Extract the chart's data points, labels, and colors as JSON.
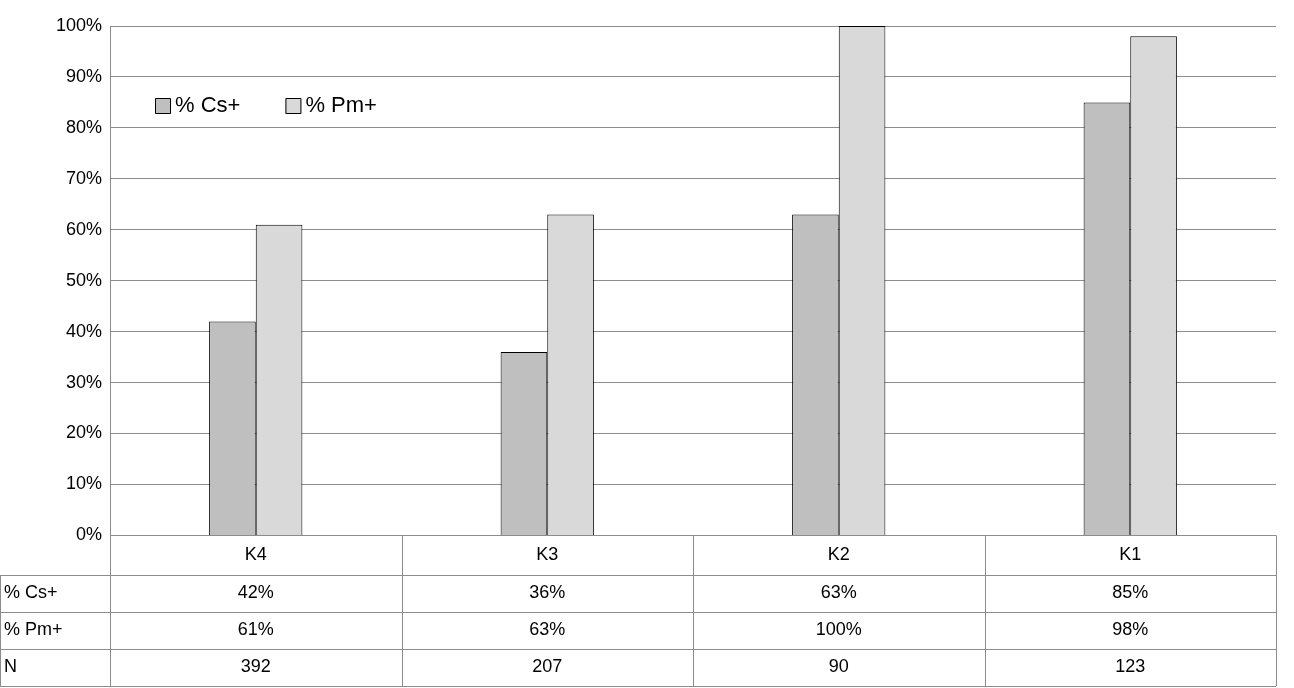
{
  "chart_data": {
    "type": "bar",
    "categories": [
      "K4",
      "K3",
      "K2",
      "K1"
    ],
    "series": [
      {
        "name": "% Cs+",
        "color": "#bfbfbf",
        "values": [
          42,
          36,
          63,
          85
        ],
        "value_labels": [
          "42%",
          "36%",
          "63%",
          "85%"
        ]
      },
      {
        "name": "% Pm+",
        "color": "#d9d9d9",
        "values": [
          61,
          63,
          100,
          98
        ],
        "value_labels": [
          "61%",
          "63%",
          "100%",
          "98%"
        ]
      }
    ],
    "ylim": [
      0,
      100
    ],
    "yticks": [
      {
        "value": 0,
        "label": "0%"
      },
      {
        "value": 10,
        "label": "10%"
      },
      {
        "value": 20,
        "label": "20%"
      },
      {
        "value": 30,
        "label": "30%"
      },
      {
        "value": 40,
        "label": "40%"
      },
      {
        "value": 50,
        "label": "50%"
      },
      {
        "value": 60,
        "label": "60%"
      },
      {
        "value": 70,
        "label": "70%"
      },
      {
        "value": 80,
        "label": "80%"
      },
      {
        "value": 90,
        "label": "90%"
      },
      {
        "value": 100,
        "label": "100%"
      }
    ],
    "annotations": [
      "N",
      "392",
      "207",
      "90",
      "123"
    ],
    "grid": "y",
    "legend": "top left"
  }
}
